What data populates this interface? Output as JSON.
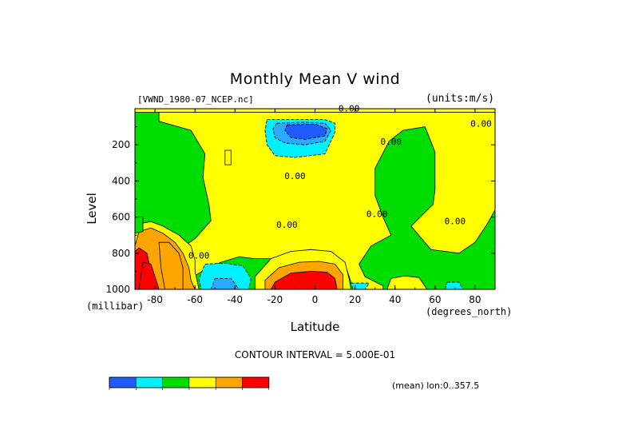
{
  "title": "Monthly Mean V wind",
  "dataset_label": "[VWND_1980-07_NCEP.nc]",
  "units_label": "(units:m/s)",
  "contour_interval": "CONTOUR INTERVAL = 5.000E-01",
  "mean_label": "(mean) lon:0..357.5",
  "chart_data": {
    "type": "heatmap",
    "title": "Monthly Mean V wind",
    "xlabel": "Latitude",
    "x_unit": "(degrees_north)",
    "ylabel": "Level",
    "y_unit": "(millibar)",
    "xlim": [
      -90,
      90
    ],
    "ylim": [
      1000,
      0
    ],
    "x_ticks": [
      -80,
      -60,
      -40,
      -20,
      0,
      20,
      40,
      60,
      80
    ],
    "x_tick_labels": [
      "-80",
      "-60",
      "-40",
      "-20",
      "0",
      "20",
      "40",
      "60",
      "80"
    ],
    "y_ticks": [
      200,
      400,
      600,
      800,
      1000
    ],
    "y_tick_labels": [
      "200",
      "400",
      "600",
      "800",
      "1000"
    ],
    "contour_labels": [
      {
        "text": "0.00",
        "x": 17,
        "y": 15
      },
      {
        "text": "0.00",
        "x": 83,
        "y": 100
      },
      {
        "text": "0.00",
        "x": 38,
        "y": 200
      },
      {
        "text": "0.00",
        "x": -10,
        "y": 390
      },
      {
        "text": "0.00",
        "x": 31,
        "y": 600
      },
      {
        "text": "0.00",
        "x": -14,
        "y": 660
      },
      {
        "text": "0.00",
        "x": 70,
        "y": 640
      },
      {
        "text": "0.00",
        "x": -58,
        "y": 830
      }
    ],
    "regions": [
      {
        "level": 1,
        "points": [
          [
            -90,
            0
          ],
          [
            90,
            0
          ],
          [
            90,
            20
          ],
          [
            -90,
            20
          ]
        ]
      },
      {
        "level": 1,
        "points": [
          [
            -78,
            20
          ],
          [
            -78,
            70
          ],
          [
            -62,
            120
          ],
          [
            -55,
            250
          ],
          [
            -56,
            380
          ],
          [
            -53,
            530
          ],
          [
            -52,
            620
          ],
          [
            -60,
            720
          ],
          [
            -68,
            780
          ],
          [
            -75,
            830
          ],
          [
            -90,
            850
          ],
          [
            -90,
            1000
          ],
          [
            -75,
            1000
          ],
          [
            -65,
            960
          ],
          [
            -55,
            890
          ],
          [
            -47,
            850
          ],
          [
            -38,
            820
          ],
          [
            -30,
            830
          ],
          [
            -22,
            830
          ],
          [
            -12,
            800
          ],
          [
            -2,
            780
          ],
          [
            8,
            800
          ],
          [
            15,
            860
          ],
          [
            18,
            960
          ],
          [
            20,
            1000
          ],
          [
            34,
            1000
          ],
          [
            34,
            980
          ],
          [
            25,
            930
          ],
          [
            22,
            860
          ],
          [
            28,
            760
          ],
          [
            38,
            700
          ],
          [
            34,
            600
          ],
          [
            30,
            480
          ],
          [
            30,
            330
          ],
          [
            37,
            180
          ],
          [
            44,
            120
          ],
          [
            55,
            100
          ],
          [
            60,
            240
          ],
          [
            60,
            450
          ],
          [
            59,
            530
          ],
          [
            48,
            650
          ],
          [
            58,
            780
          ],
          [
            72,
            800
          ],
          [
            80,
            740
          ],
          [
            86,
            640
          ],
          [
            90,
            560
          ],
          [
            90,
            20
          ]
        ]
      },
      {
        "level": -1,
        "points": [
          [
            -24,
            60
          ],
          [
            -10,
            60
          ],
          [
            5,
            60
          ],
          [
            10,
            80
          ],
          [
            10,
            130
          ],
          [
            5,
            250
          ],
          [
            -10,
            270
          ],
          [
            -20,
            260
          ],
          [
            -24,
            200
          ],
          [
            -25,
            120
          ]
        ]
      },
      {
        "level": -2,
        "points": [
          [
            -19,
            80
          ],
          [
            -5,
            75
          ],
          [
            5,
            80
          ],
          [
            8,
            120
          ],
          [
            5,
            180
          ],
          [
            -5,
            200
          ],
          [
            -15,
            190
          ],
          [
            -20,
            160
          ],
          [
            -21,
            110
          ]
        ]
      },
      {
        "level": -3,
        "points": [
          [
            -14,
            90
          ],
          [
            0,
            85
          ],
          [
            6,
            110
          ],
          [
            5,
            150
          ],
          [
            -5,
            170
          ],
          [
            -12,
            160
          ],
          [
            -15,
            120
          ]
        ]
      },
      {
        "level": -2,
        "points": [
          [
            -90,
            700
          ],
          [
            -83,
            700
          ],
          [
            -86,
            760
          ],
          [
            -90,
            780
          ]
        ]
      },
      {
        "level": -2,
        "points": [
          [
            -90,
            840
          ],
          [
            -88,
            900
          ],
          [
            -88,
            980
          ],
          [
            -90,
            1000
          ]
        ]
      },
      {
        "level": -1,
        "points": [
          [
            -55,
            860
          ],
          [
            -45,
            855
          ],
          [
            -36,
            870
          ],
          [
            -32,
            940
          ],
          [
            -33,
            1000
          ],
          [
            -57,
            1000
          ],
          [
            -58,
            940
          ]
        ]
      },
      {
        "level": -2,
        "points": [
          [
            -50,
            940
          ],
          [
            -42,
            940
          ],
          [
            -38,
            1000
          ],
          [
            -52,
            1000
          ]
        ]
      },
      {
        "level": -1,
        "points": [
          [
            18,
            965
          ],
          [
            27,
            965
          ],
          [
            25,
            1000
          ],
          [
            19,
            1000
          ]
        ]
      },
      {
        "level": -1,
        "points": [
          [
            66,
            960
          ],
          [
            72,
            960
          ],
          [
            74,
            1000
          ],
          [
            65,
            1000
          ]
        ]
      },
      {
        "level": 1,
        "points": [
          [
            -90,
            640
          ],
          [
            -82,
            625
          ],
          [
            -76,
            650
          ],
          [
            -68,
            700
          ],
          [
            -62,
            760
          ],
          [
            -60,
            840
          ],
          [
            -60,
            900
          ],
          [
            -58,
            1000
          ],
          [
            -90,
            1000
          ]
        ]
      },
      {
        "level": 2,
        "points": [
          [
            -88,
            680
          ],
          [
            -82,
            660
          ],
          [
            -76,
            690
          ],
          [
            -70,
            740
          ],
          [
            -66,
            800
          ],
          [
            -63,
            880
          ],
          [
            -62,
            950
          ],
          [
            -60,
            1000
          ],
          [
            -90,
            1000
          ],
          [
            -90,
            760
          ]
        ]
      },
      {
        "level": 3,
        "points": [
          [
            -88,
            770
          ],
          [
            -84,
            800
          ],
          [
            -82,
            900
          ],
          [
            -80,
            1000
          ],
          [
            -90,
            1000
          ],
          [
            -90,
            790
          ]
        ]
      },
      {
        "level": 2,
        "points": [
          [
            -78,
            740
          ],
          [
            -73,
            740
          ],
          [
            -68,
            800
          ],
          [
            -66,
            880
          ],
          [
            -66,
            1000
          ],
          [
            -75,
            1000
          ],
          [
            -77,
            880
          ]
        ]
      },
      {
        "level": 3,
        "points": [
          [
            -86,
            850
          ],
          [
            -82,
            860
          ],
          [
            -80,
            930
          ],
          [
            -78,
            1000
          ],
          [
            -88,
            1000
          ]
        ]
      },
      {
        "level": 1,
        "points": [
          [
            -30,
            930
          ],
          [
            -22,
            830
          ],
          [
            -12,
            790
          ],
          [
            -2,
            780
          ],
          [
            8,
            790
          ],
          [
            15,
            850
          ],
          [
            17,
            940
          ],
          [
            18,
            1000
          ],
          [
            -30,
            1000
          ]
        ]
      },
      {
        "level": 2,
        "points": [
          [
            -25,
            950
          ],
          [
            -18,
            880
          ],
          [
            -8,
            850
          ],
          [
            2,
            845
          ],
          [
            10,
            860
          ],
          [
            14,
            920
          ],
          [
            14,
            1000
          ],
          [
            -25,
            1000
          ]
        ]
      },
      {
        "level": 3,
        "points": [
          [
            -20,
            960
          ],
          [
            -12,
            910
          ],
          [
            -2,
            900
          ],
          [
            6,
            905
          ],
          [
            10,
            940
          ],
          [
            11,
            1000
          ],
          [
            -22,
            1000
          ]
        ]
      },
      {
        "level": 1,
        "points": [
          [
            -45,
            230
          ],
          [
            -42,
            230
          ],
          [
            -42,
            310
          ],
          [
            -45,
            310
          ]
        ]
      },
      {
        "level": 1,
        "points": [
          [
            38,
            940
          ],
          [
            45,
            925
          ],
          [
            52,
            935
          ],
          [
            56,
            1000
          ],
          [
            36,
            1000
          ]
        ]
      },
      {
        "level": 0,
        "points": [
          [
            -90,
            600
          ],
          [
            -86,
            600
          ],
          [
            -86,
            680
          ],
          [
            -90,
            690
          ]
        ]
      }
    ]
  }
}
